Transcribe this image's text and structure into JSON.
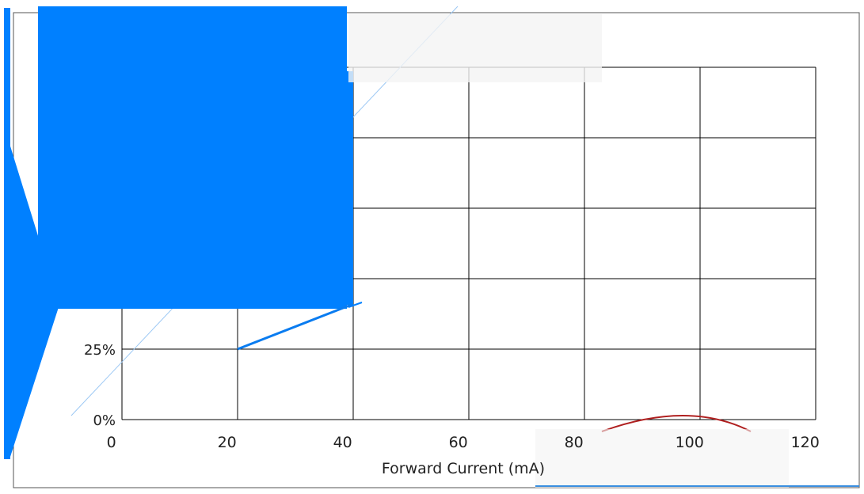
{
  "chart_data": {
    "type": "line",
    "title": "",
    "xlabel": "Forward Current (mA)",
    "ylabel": "",
    "x_ticks": [
      "0",
      "20",
      "40",
      "60",
      "80",
      "100",
      "120"
    ],
    "y_ticks": [
      "0%",
      "25%"
    ],
    "xlim": [
      0,
      120
    ],
    "ylim": [
      0,
      125
    ],
    "grid": true,
    "series": [
      {
        "x": [
          20,
          40
        ],
        "y": [
          25,
          41
        ]
      }
    ]
  },
  "colors": {
    "series_line": "#0a7cf0",
    "redaction_fill": "#0080ff",
    "grid": "#000000",
    "text": "#222222"
  }
}
